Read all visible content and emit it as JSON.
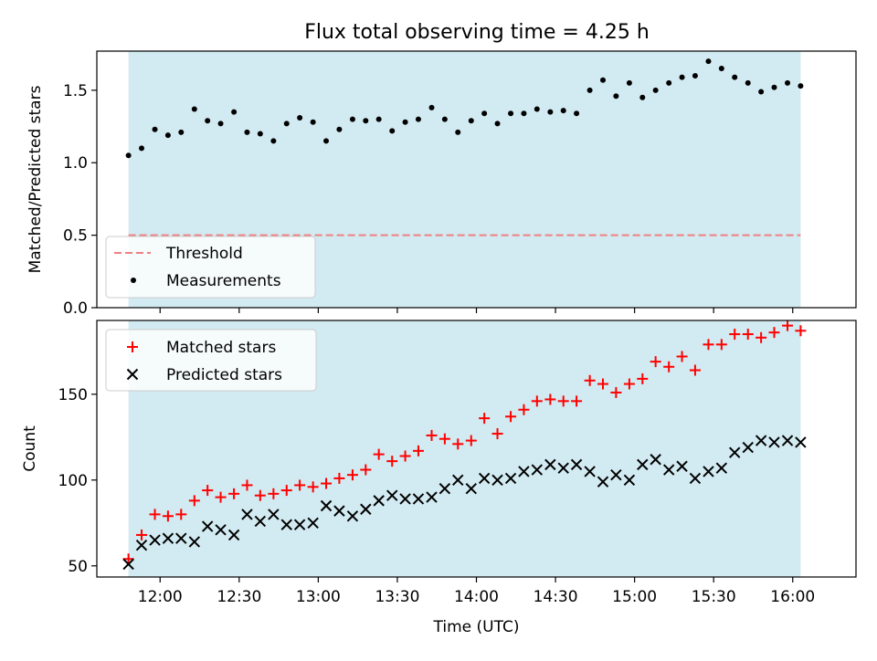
{
  "title": "Flux total observing time = 4.25 h",
  "colors": {
    "shade": "#add8e6",
    "threshold": "#f08080",
    "measurements": "#000000",
    "matched": "#ff0000",
    "predicted": "#000000"
  },
  "chart_data": [
    {
      "type": "scatter",
      "panel": "top",
      "ylabel": "Matched/Predicted stars",
      "xlabel": "",
      "xlim_hours": [
        11.6,
        16.4
      ],
      "ylim": [
        0,
        1.77
      ],
      "yticks": [
        0.0,
        0.5,
        1.0,
        1.5
      ],
      "ytick_labels": [
        "0.0",
        "0.5",
        "1.0",
        "1.5"
      ],
      "shaded_range_hours": [
        11.8,
        16.05
      ],
      "threshold": {
        "label": "Threshold",
        "value": 0.5
      },
      "legend": {
        "position": "lower-left",
        "entries": [
          "Threshold",
          "Measurements"
        ]
      },
      "series": [
        {
          "name": "Measurements",
          "x_hours": [
            11.8,
            11.883,
            11.967,
            12.05,
            12.133,
            12.217,
            12.3,
            12.383,
            12.467,
            12.55,
            12.633,
            12.717,
            12.8,
            12.883,
            12.967,
            13.05,
            13.133,
            13.217,
            13.3,
            13.383,
            13.467,
            13.55,
            13.633,
            13.717,
            13.8,
            13.883,
            13.967,
            14.05,
            14.133,
            14.217,
            14.3,
            14.383,
            14.467,
            14.55,
            14.633,
            14.717,
            14.8,
            14.883,
            14.967,
            15.05,
            15.133,
            15.217,
            15.3,
            15.383,
            15.467,
            15.55,
            15.633,
            15.717,
            15.8,
            15.883,
            15.967,
            16.05
          ],
          "values": [
            1.05,
            1.1,
            1.23,
            1.19,
            1.21,
            1.37,
            1.29,
            1.27,
            1.35,
            1.21,
            1.2,
            1.15,
            1.27,
            1.31,
            1.28,
            1.15,
            1.23,
            1.3,
            1.29,
            1.3,
            1.22,
            1.28,
            1.3,
            1.38,
            1.3,
            1.21,
            1.29,
            1.34,
            1.27,
            1.34,
            1.34,
            1.37,
            1.35,
            1.36,
            1.34,
            1.5,
            1.57,
            1.46,
            1.55,
            1.45,
            1.5,
            1.55,
            1.59,
            1.6,
            1.7,
            1.65,
            1.59,
            1.55,
            1.49,
            1.52,
            1.55,
            1.53
          ]
        }
      ]
    },
    {
      "type": "scatter",
      "panel": "bottom",
      "ylabel": "Count",
      "xlabel": "Time (UTC)",
      "xlim_hours": [
        11.6,
        16.4
      ],
      "ylim": [
        43.5,
        193
      ],
      "yticks": [
        50,
        100,
        150
      ],
      "ytick_labels": [
        "50",
        "100",
        "150"
      ],
      "xticks_hours": [
        12,
        12.5,
        13,
        13.5,
        14,
        14.5,
        15,
        15.5,
        16
      ],
      "xtick_labels": [
        "12:00",
        "12:30",
        "13:00",
        "13:30",
        "14:00",
        "14:30",
        "15:00",
        "15:30",
        "16:00"
      ],
      "shaded_range_hours": [
        11.8,
        16.05
      ],
      "legend": {
        "position": "top-left",
        "entries": [
          "Matched stars",
          "Predicted stars"
        ]
      },
      "series": [
        {
          "name": "Matched stars",
          "marker": "+",
          "x_hours": [
            11.8,
            11.883,
            11.967,
            12.05,
            12.133,
            12.217,
            12.3,
            12.383,
            12.467,
            12.55,
            12.633,
            12.717,
            12.8,
            12.883,
            12.967,
            13.05,
            13.133,
            13.217,
            13.3,
            13.383,
            13.467,
            13.55,
            13.633,
            13.717,
            13.8,
            13.883,
            13.967,
            14.05,
            14.133,
            14.217,
            14.3,
            14.383,
            14.467,
            14.55,
            14.633,
            14.717,
            14.8,
            14.883,
            14.967,
            15.05,
            15.133,
            15.217,
            15.3,
            15.383,
            15.467,
            15.55,
            15.633,
            15.717,
            15.8,
            15.883,
            15.967,
            16.05
          ],
          "values": [
            54,
            68,
            80,
            79,
            80,
            88,
            94,
            90,
            92,
            97,
            91,
            92,
            94,
            97,
            96,
            98,
            101,
            103,
            106,
            115,
            111,
            114,
            117,
            126,
            124,
            121,
            123,
            136,
            127,
            137,
            141,
            146,
            147,
            146,
            146,
            158,
            156,
            151,
            156,
            159,
            169,
            166,
            172,
            164,
            179,
            179,
            185,
            185,
            183,
            186,
            190,
            187
          ]
        },
        {
          "name": "Predicted stars",
          "marker": "x",
          "x_hours": [
            11.8,
            11.883,
            11.967,
            12.05,
            12.133,
            12.217,
            12.3,
            12.383,
            12.467,
            12.55,
            12.633,
            12.717,
            12.8,
            12.883,
            12.967,
            13.05,
            13.133,
            13.217,
            13.3,
            13.383,
            13.467,
            13.55,
            13.633,
            13.717,
            13.8,
            13.883,
            13.967,
            14.05,
            14.133,
            14.217,
            14.3,
            14.383,
            14.467,
            14.55,
            14.633,
            14.717,
            14.8,
            14.883,
            14.967,
            15.05,
            15.133,
            15.217,
            15.3,
            15.383,
            15.467,
            15.55,
            15.633,
            15.717,
            15.8,
            15.883,
            15.967,
            16.05
          ],
          "values": [
            51,
            62,
            65,
            66,
            66,
            64,
            73,
            71,
            68,
            80,
            76,
            80,
            74,
            74,
            75,
            85,
            82,
            79,
            83,
            88,
            91,
            89,
            89,
            90,
            95,
            100,
            95,
            101,
            100,
            101,
            105,
            106,
            109,
            107,
            109,
            105,
            99,
            103,
            100,
            109,
            112,
            106,
            108,
            101,
            105,
            107,
            116,
            119,
            123,
            122,
            123,
            122
          ]
        }
      ]
    }
  ]
}
